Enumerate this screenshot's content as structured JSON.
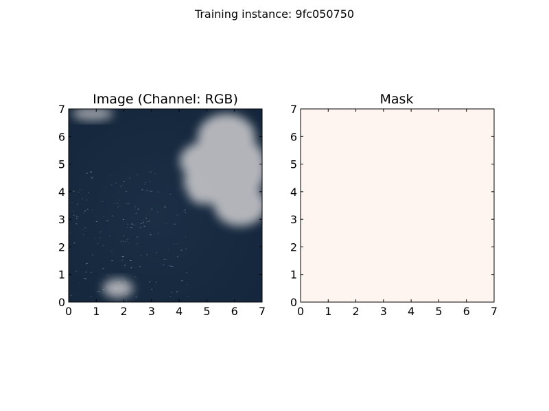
{
  "figure": {
    "suptitle": "Training instance: 9fc050750"
  },
  "chart_data": [
    {
      "type": "heatmap",
      "title": "Image (Channel: RGB)",
      "content": "satellite-rgb-image",
      "xlim": [
        0,
        7
      ],
      "ylim": [
        0,
        7
      ],
      "xticks": [
        0,
        1,
        2,
        3,
        4,
        5,
        6,
        7
      ],
      "yticks": [
        0,
        1,
        2,
        3,
        4,
        5,
        6,
        7
      ],
      "colors": {
        "ocean": "#1b2e45",
        "ocean_dark": "#14263b",
        "cloud": "#c4c4c8",
        "glint": "#c8d2dc"
      }
    },
    {
      "type": "heatmap",
      "title": "Mask",
      "xlim": [
        0,
        7
      ],
      "ylim": [
        0,
        7
      ],
      "xticks": [
        0,
        1,
        2,
        3,
        4,
        5,
        6,
        7
      ],
      "yticks": [
        0,
        1,
        2,
        3,
        4,
        5,
        6,
        7
      ],
      "fill_value": 0,
      "colors": {
        "fill": "#fff5f0"
      }
    }
  ]
}
